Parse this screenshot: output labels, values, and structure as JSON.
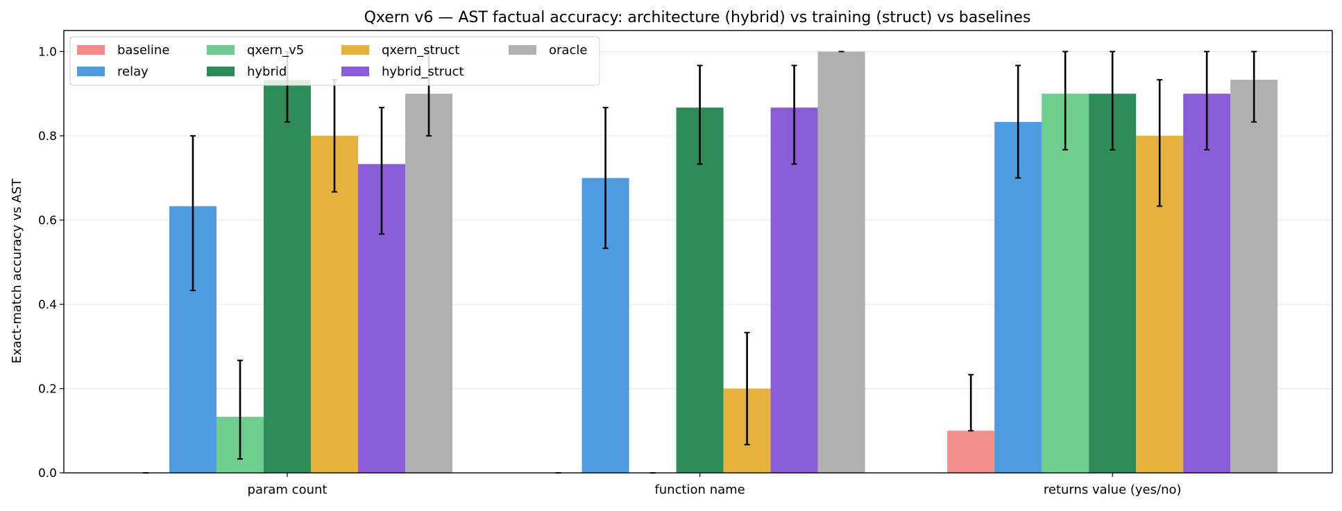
{
  "chart_data": {
    "type": "bar",
    "title": "Qxern v6 — AST factual accuracy: architecture (hybrid) vs training (struct) vs baselines",
    "xlabel": "",
    "ylabel": "Exact-match accuracy vs AST",
    "ylim": [
      0,
      1.05
    ],
    "yticks": [
      "0.0",
      "0.2",
      "0.4",
      "0.6",
      "0.8",
      "1.0"
    ],
    "grid": "horizontal",
    "legend_position": "top-left",
    "categories": [
      "param count",
      "function name",
      "returns value (yes/no)"
    ],
    "series": [
      {
        "name": "baseline",
        "color": "#f28e8c",
        "values": [
          0.0,
          0.0,
          0.1
        ],
        "err_low": [
          0.0,
          0.0,
          0.1
        ],
        "err_high": [
          0.0,
          0.0,
          0.233
        ]
      },
      {
        "name": "relay",
        "color": "#4e9cdf",
        "values": [
          0.633,
          0.7,
          0.833
        ],
        "err_low": [
          0.433,
          0.533,
          0.7
        ],
        "err_high": [
          0.8,
          0.867,
          0.967
        ]
      },
      {
        "name": "qxern_v5",
        "color": "#6fcd8f",
        "values": [
          0.133,
          0.0,
          0.9
        ],
        "err_low": [
          0.033,
          0.0,
          0.767
        ],
        "err_high": [
          0.267,
          0.0,
          1.0
        ]
      },
      {
        "name": "hybrid",
        "color": "#2e8a57",
        "values": [
          0.933,
          0.867,
          0.9
        ],
        "err_low": [
          0.833,
          0.733,
          0.767
        ],
        "err_high": [
          1.0,
          0.967,
          1.0
        ]
      },
      {
        "name": "qxern_struct",
        "color": "#e5b13f",
        "values": [
          0.8,
          0.2,
          0.8
        ],
        "err_low": [
          0.667,
          0.067,
          0.633
        ],
        "err_high": [
          0.933,
          0.333,
          0.933
        ]
      },
      {
        "name": "hybrid_struct",
        "color": "#8a5cd6",
        "values": [
          0.733,
          0.867,
          0.9
        ],
        "err_low": [
          0.567,
          0.733,
          0.767
        ],
        "err_high": [
          0.867,
          0.967,
          1.0
        ]
      },
      {
        "name": "oracle",
        "color": "#b0b0b0",
        "values": [
          0.9,
          1.0,
          0.933
        ],
        "err_low": [
          0.8,
          1.0,
          0.833
        ],
        "err_high": [
          1.0,
          1.0,
          1.0
        ]
      }
    ]
  }
}
